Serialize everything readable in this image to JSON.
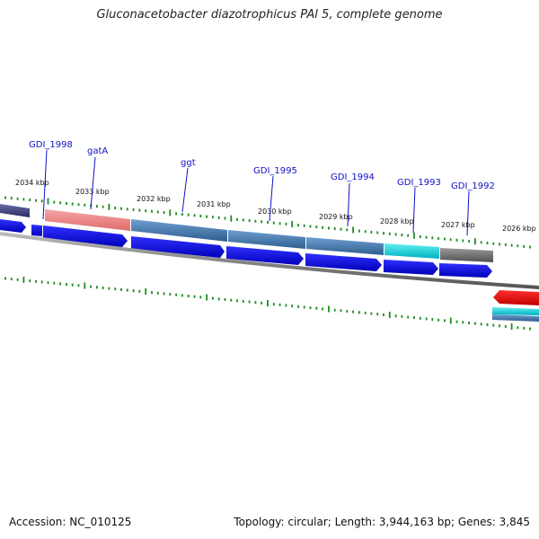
{
  "title": "Gluconacetobacter diazotrophicus PAl 5, complete genome",
  "footer": {
    "accession": "Accession: NC_010125",
    "topology": "Topology: circular; Length: 3,944,163 bp; Genes: 3,845"
  },
  "kbp_labels": [
    "2034 kbp",
    "2033 kbp",
    "2032 kbp",
    "2031 kbp",
    "2030 kbp",
    "2029 kbp",
    "2028 kbp",
    "2027 kbp",
    "2026 kbp"
  ],
  "gene_labels": [
    "GDI_1998",
    "gatA",
    "ggt",
    "GDI_1995",
    "GDI_1994",
    "GDI_1993",
    "GDI_1992"
  ],
  "colors": {
    "title": "#222222",
    "gene_label": "#1010c8",
    "tick": "#1f8a1f",
    "arrow_blue": "#0000ee",
    "backbone": "#888888",
    "feature_red": "#ee0000",
    "feature_cyan": "#00d8e0"
  }
}
